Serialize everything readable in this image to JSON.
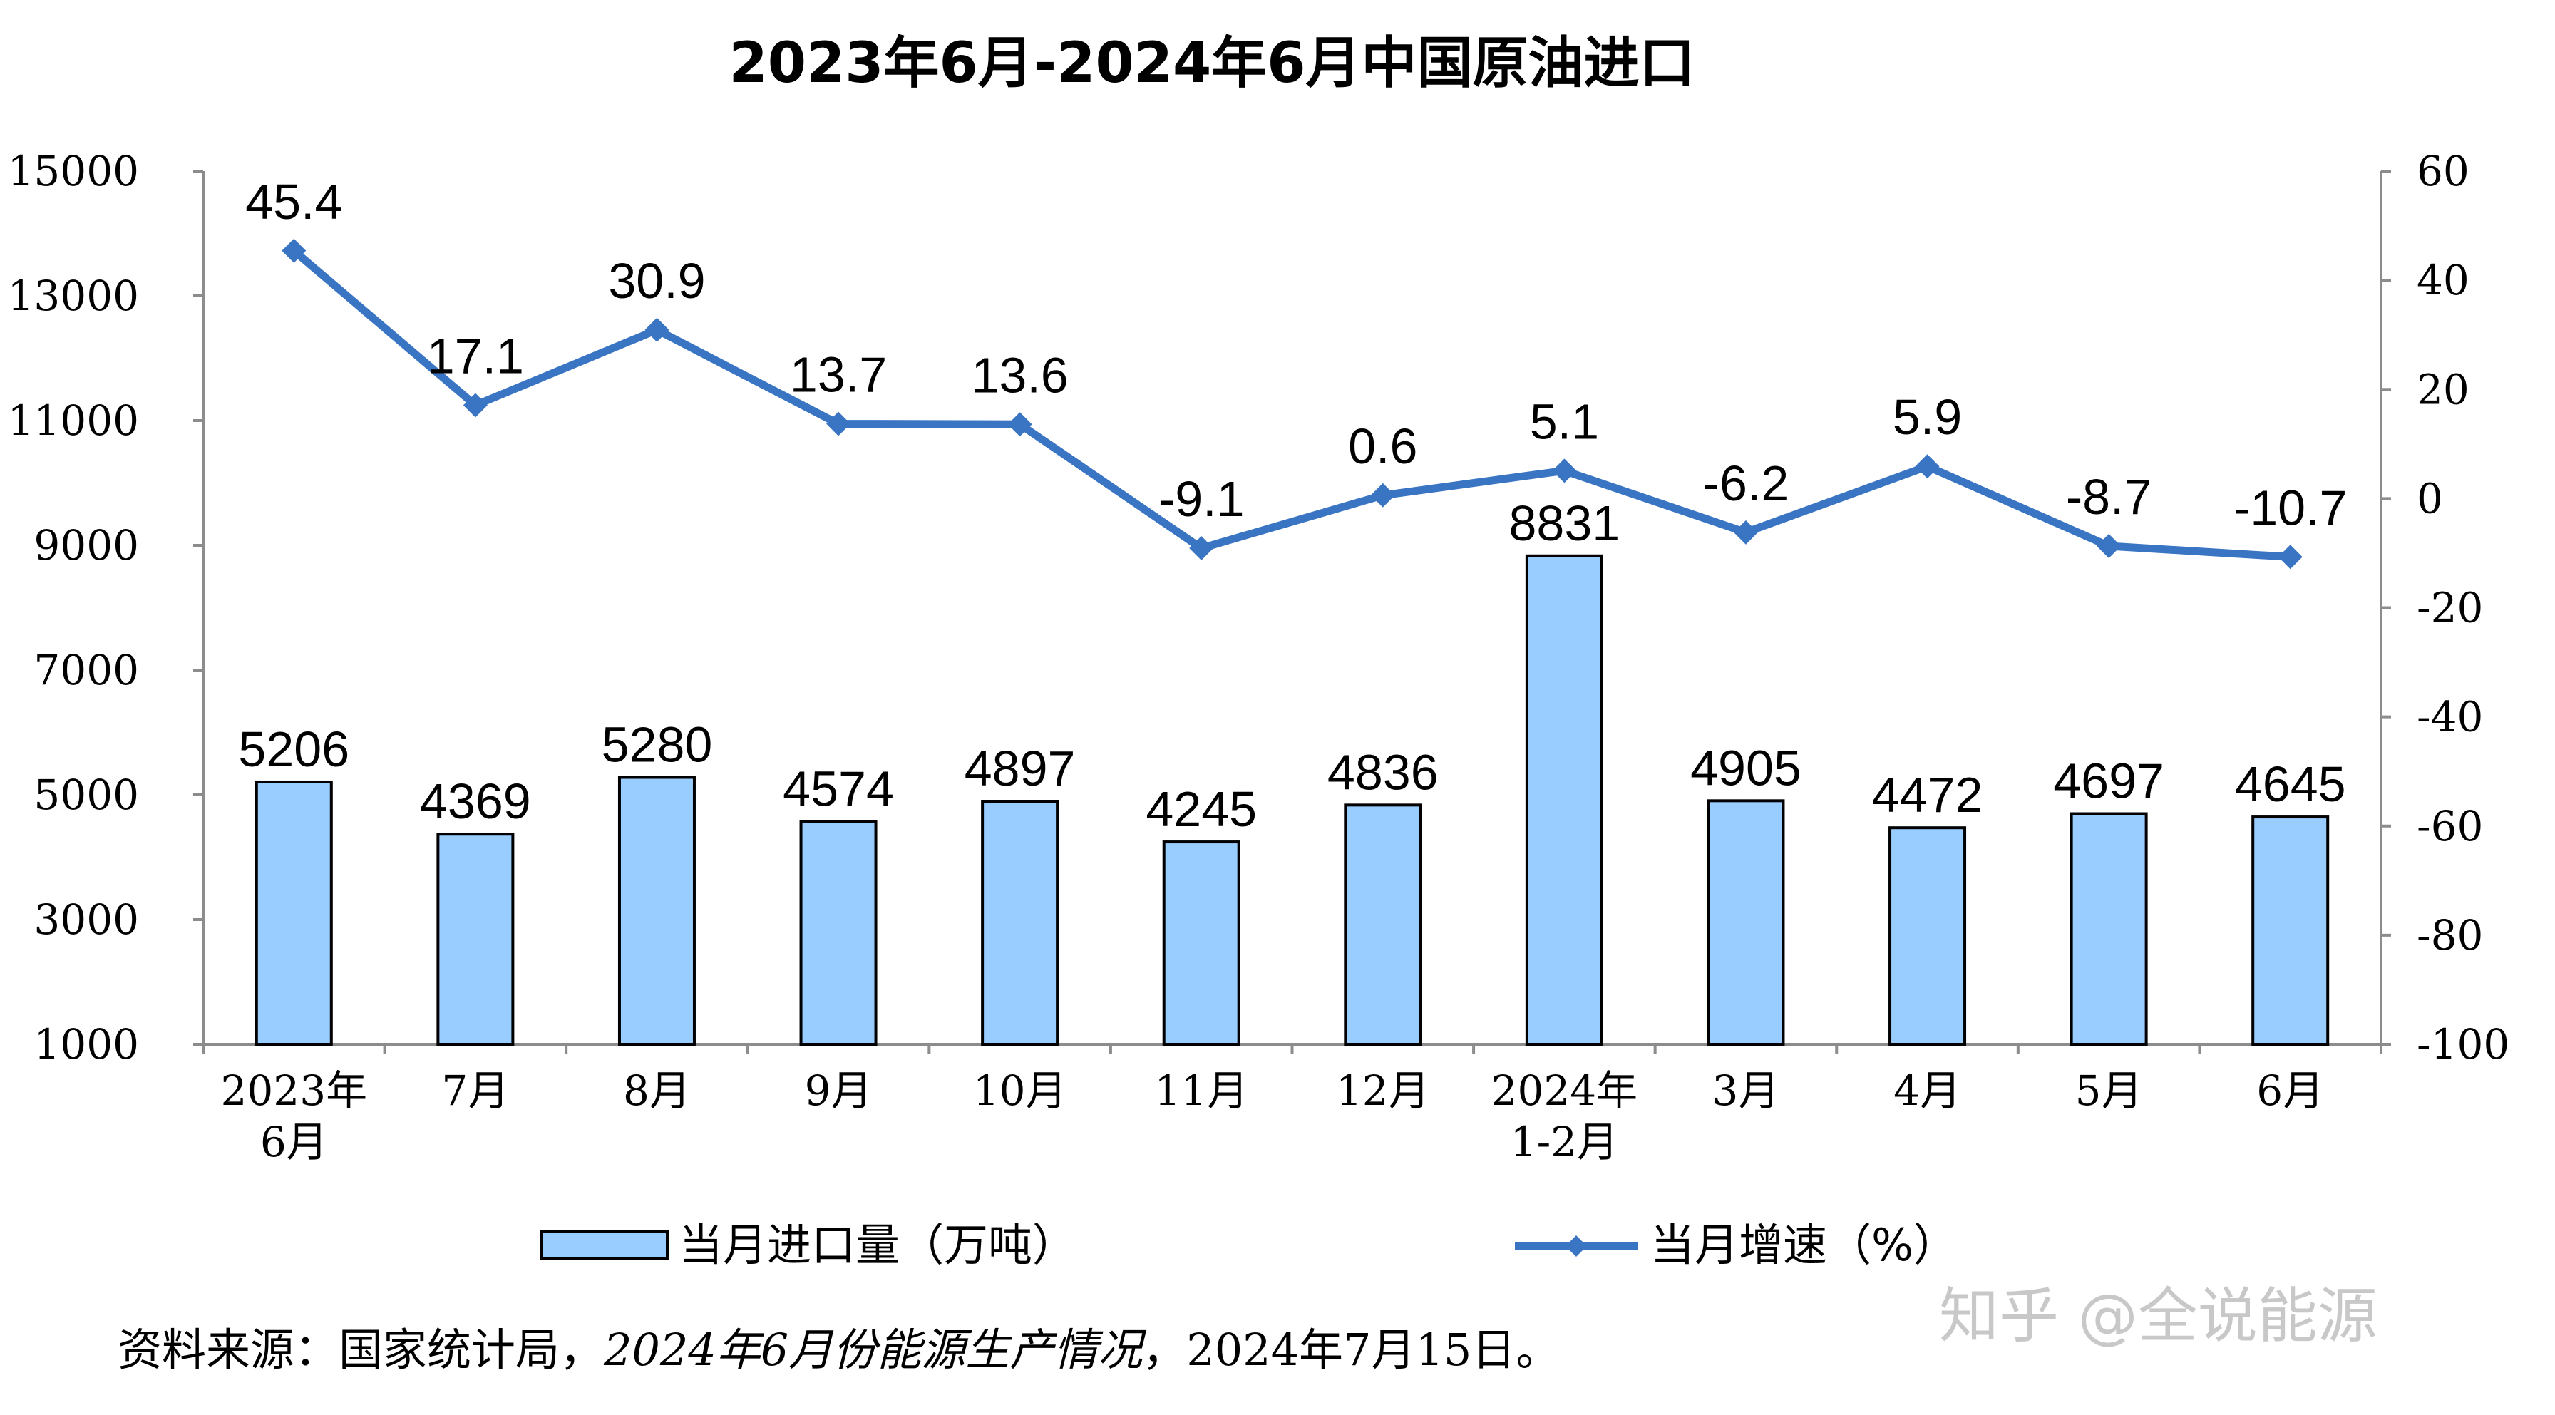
{
  "chart_data": {
    "type": "bar+line",
    "title": "2023年6月-2024年6月中国原油进口",
    "categories": [
      [
        "2023年",
        "6月"
      ],
      [
        "7月"
      ],
      [
        "8月"
      ],
      [
        "9月"
      ],
      [
        "10月"
      ],
      [
        "11月"
      ],
      [
        "12月"
      ],
      [
        "2024年",
        "1-2月"
      ],
      [
        "3月"
      ],
      [
        "4月"
      ],
      [
        "5月"
      ],
      [
        "6月"
      ]
    ],
    "series": [
      {
        "name": "当月进口量（万吨）",
        "type": "bar",
        "axis": "left",
        "color": "#99CCFF",
        "values": [
          5206,
          4369,
          5280,
          4574,
          4897,
          4245,
          4836,
          8831,
          4905,
          4472,
          4697,
          4645
        ],
        "labels": [
          "5206",
          "4369",
          "5280",
          "4574",
          "4897",
          "4245",
          "4836",
          "8831",
          "4905",
          "4472",
          "4697",
          "4645"
        ]
      },
      {
        "name": "当月增速（%）",
        "type": "line",
        "axis": "right",
        "color": "#3A75C4",
        "values": [
          45.4,
          17.1,
          30.9,
          13.7,
          13.6,
          -9.1,
          0.6,
          5.1,
          -6.2,
          5.9,
          -8.7,
          -10.7
        ],
        "labels": [
          "45.4",
          "17.1",
          "30.9",
          "13.7",
          "13.6",
          "-9.1",
          "0.6",
          "5.1",
          "-6.2",
          "5.9",
          "-8.7",
          "-10.7"
        ]
      }
    ],
    "y_left": {
      "min": 1000,
      "max": 15000,
      "ticks": [
        "15000",
        "13000",
        "11000",
        "9000",
        "7000",
        "5000",
        "3000",
        "1000"
      ]
    },
    "y_right": {
      "min": -100,
      "max": 60,
      "ticks": [
        "60",
        "40",
        "20",
        "0",
        "-20",
        "-40",
        "-60",
        "-80",
        "-100"
      ]
    },
    "grid": false,
    "legend": "bottom"
  },
  "legend": {
    "bar_label": "当月进口量（万吨）",
    "line_label": "当月增速（%）"
  },
  "source": {
    "prefix": "资料来源：国家统计局，",
    "italic": "2024年6月份能源生产情况",
    "suffix": "，2024年7月15日。"
  },
  "watermark": "知乎 @全说能源"
}
